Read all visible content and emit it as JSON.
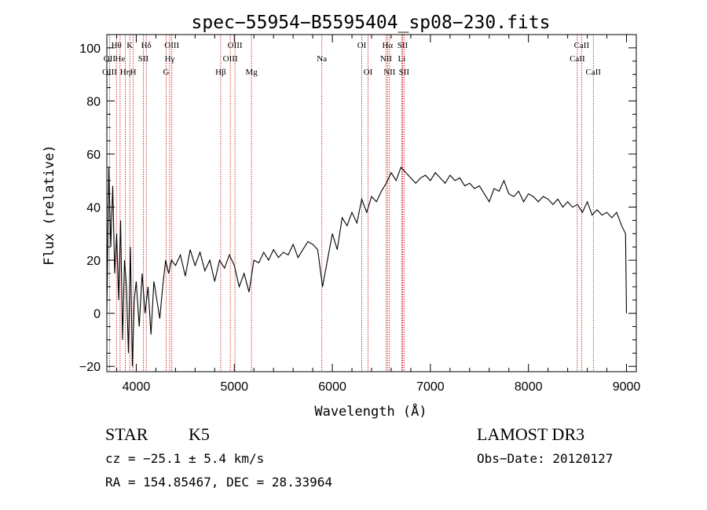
{
  "chart_data": {
    "type": "line",
    "title": "spec−55954−B5595404_sp08−230.fits",
    "xlabel": "Wavelength (Å)",
    "ylabel": "Flux (relative)",
    "xlim": [
      3700,
      9100
    ],
    "ylim": [
      -22,
      105
    ],
    "x_ticks": [
      4000,
      5000,
      6000,
      7000,
      8000,
      9000
    ],
    "x_tick_labels": [
      "4000",
      "5000",
      "6000",
      "7000",
      "8000",
      "9000"
    ],
    "y_ticks": [
      -20,
      0,
      20,
      40,
      60,
      80,
      100
    ],
    "y_tick_labels": [
      "−20",
      "0",
      "20",
      "40",
      "60",
      "80",
      "100"
    ],
    "series": [
      {
        "name": "spectrum",
        "color": "#000000",
        "x": [
          3700,
          3720,
          3740,
          3760,
          3780,
          3800,
          3820,
          3840,
          3860,
          3880,
          3900,
          3920,
          3940,
          3960,
          3980,
          4000,
          4030,
          4060,
          4090,
          4120,
          4150,
          4180,
          4210,
          4240,
          4270,
          4300,
          4330,
          4360,
          4400,
          4450,
          4500,
          4550,
          4600,
          4650,
          4700,
          4750,
          4800,
          4850,
          4900,
          4950,
          5000,
          5050,
          5100,
          5150,
          5200,
          5250,
          5300,
          5350,
          5400,
          5450,
          5500,
          5550,
          5600,
          5650,
          5700,
          5750,
          5800,
          5850,
          5900,
          5950,
          6000,
          6050,
          6100,
          6150,
          6200,
          6250,
          6300,
          6350,
          6400,
          6450,
          6500,
          6550,
          6600,
          6650,
          6700,
          6750,
          6800,
          6850,
          6900,
          6950,
          7000,
          7050,
          7100,
          7150,
          7200,
          7250,
          7300,
          7350,
          7400,
          7450,
          7500,
          7550,
          7600,
          7650,
          7700,
          7750,
          7800,
          7850,
          7900,
          7950,
          8000,
          8050,
          8100,
          8150,
          8200,
          8250,
          8300,
          8350,
          8400,
          8450,
          8500,
          8550,
          8600,
          8650,
          8700,
          8750,
          8800,
          8850,
          8900,
          8950,
          8990,
          9000
        ],
        "y": [
          0,
          55,
          25,
          48,
          15,
          30,
          5,
          35,
          -10,
          20,
          10,
          -15,
          25,
          -20,
          5,
          12,
          -5,
          15,
          0,
          10,
          -8,
          12,
          5,
          -2,
          10,
          20,
          15,
          20,
          18,
          22,
          14,
          24,
          18,
          23,
          16,
          20,
          12,
          20,
          17,
          22,
          18,
          10,
          15,
          8,
          20,
          19,
          23,
          20,
          24,
          21,
          23,
          22,
          26,
          21,
          24,
          27,
          26,
          24,
          10,
          20,
          30,
          24,
          36,
          33,
          38,
          34,
          43,
          38,
          44,
          42,
          46,
          49,
          53,
          50,
          55,
          53,
          51,
          49,
          51,
          52,
          50,
          53,
          51,
          49,
          52,
          50,
          51,
          48,
          49,
          47,
          48,
          45,
          42,
          47,
          46,
          50,
          45,
          44,
          46,
          42,
          45,
          44,
          42,
          44,
          43,
          41,
          43,
          40,
          42,
          40,
          41,
          38,
          42,
          37,
          39,
          37,
          38,
          36,
          38,
          33,
          30,
          0
        ]
      }
    ],
    "lines": [
      {
        "label": "OII",
        "x": 3727,
        "row": 1
      },
      {
        "label": "OIII",
        "x": 3728,
        "row": 2
      },
      {
        "label": "Hθ",
        "x": 3798,
        "row": 0
      },
      {
        "label": "He",
        "x": 3835,
        "row": 1
      },
      {
        "label": "Hη",
        "x": 3889,
        "row": 2
      },
      {
        "label": "K",
        "x": 3934,
        "row": 0
      },
      {
        "label": "H",
        "x": 3969,
        "row": 2
      },
      {
        "label": "SII",
        "x": 4072,
        "row": 1
      },
      {
        "label": "Hδ",
        "x": 4102,
        "row": 0
      },
      {
        "label": "OIII",
        "x": 4363,
        "row": 0
      },
      {
        "label": "Hγ",
        "x": 4341,
        "row": 1
      },
      {
        "label": "G",
        "x": 4305,
        "row": 2
      },
      {
        "label": "Hβ",
        "x": 4861,
        "row": 2
      },
      {
        "label": "OIII",
        "x": 5007,
        "row": 0
      },
      {
        "label": "OIII",
        "x": 4959,
        "row": 1
      },
      {
        "label": "Mg",
        "x": 5175,
        "row": 2
      },
      {
        "label": "Na",
        "x": 5893,
        "row": 1
      },
      {
        "label": "OI",
        "x": 6300,
        "row": 0
      },
      {
        "label": "OI",
        "x": 6364,
        "row": 2
      },
      {
        "label": "Hα",
        "x": 6563,
        "row": 0
      },
      {
        "label": "NII",
        "x": 6548,
        "row": 1
      },
      {
        "label": "NII",
        "x": 6583,
        "row": 2
      },
      {
        "label": "SII",
        "x": 6716,
        "row": 0
      },
      {
        "label": "Li",
        "x": 6708,
        "row": 1
      },
      {
        "label": "SII",
        "x": 6731,
        "row": 2
      },
      {
        "label": "CaII",
        "x": 8542,
        "row": 0
      },
      {
        "label": "CaII",
        "x": 8498,
        "row": 1
      },
      {
        "label": "CaII",
        "x": 8662,
        "row": 2
      }
    ],
    "line_color": "#cc0000"
  },
  "footer": {
    "class_label": "STAR",
    "subclass": "K5",
    "survey": "LAMOST DR3",
    "cz": "cz = −25.1 ± 5.4 km/s",
    "obs_date": "Obs−Date: 20120127",
    "coords": "RA = 154.85467, DEC =  28.33964"
  }
}
